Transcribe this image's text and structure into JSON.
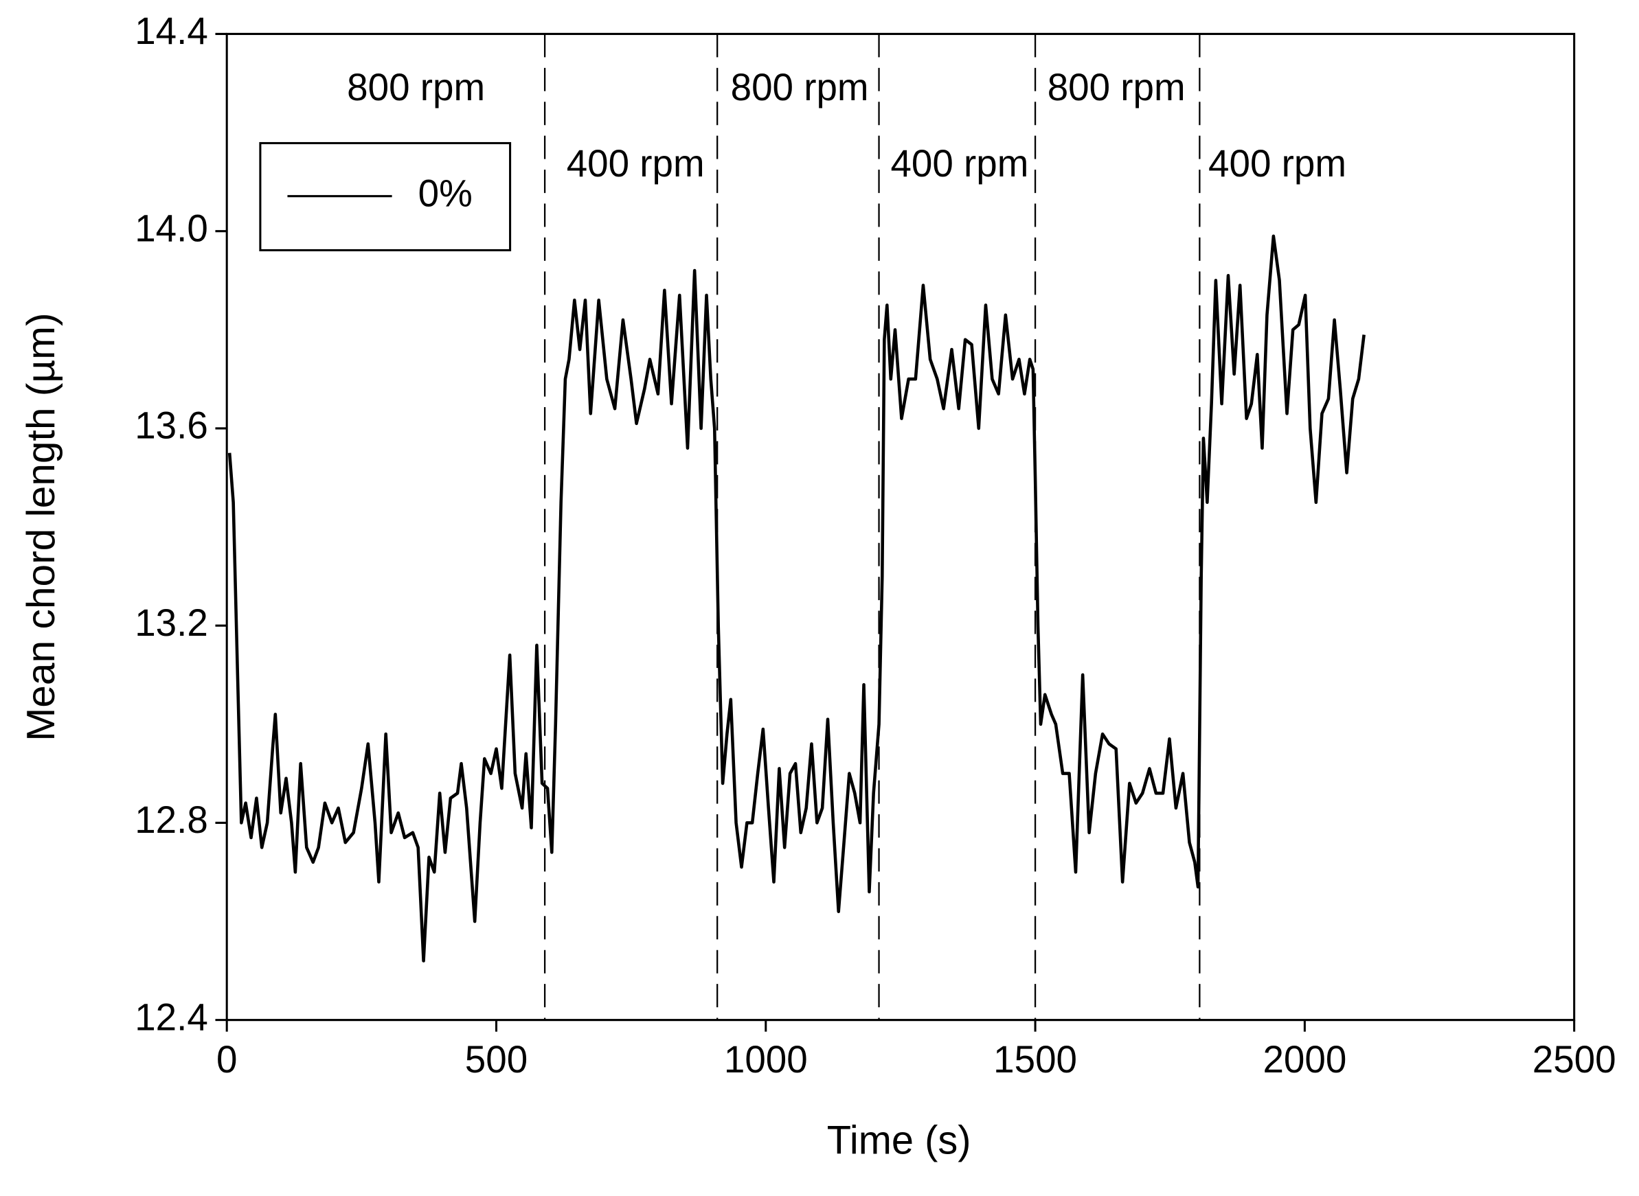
{
  "chart_data": {
    "type": "line",
    "xlabel": "Time (s)",
    "ylabel": "Mean chord length (µm)",
    "xlim": [
      0,
      2500
    ],
    "xticks": [
      0,
      500,
      1000,
      1500,
      2000,
      2500
    ],
    "ylim": [
      12.4,
      14.4
    ],
    "yticks": [
      12.4,
      12.8,
      13.2,
      13.6,
      {
        "value": 14,
        "label": "14.0"
      },
      14.4
    ],
    "legend": "upper left",
    "vlines": [
      590,
      910,
      1210,
      1500,
      1805
    ],
    "annotations": [
      "800 rpm",
      "400 rpm",
      "800 rpm",
      "400 rpm",
      "800 rpm",
      "400 rpm"
    ],
    "x": [
      5,
      12,
      20,
      27,
      35,
      45,
      55,
      65,
      75,
      85,
      90,
      100,
      110,
      120,
      127,
      137,
      148,
      160,
      170,
      182,
      195,
      207,
      220,
      235,
      250,
      262,
      275,
      282,
      295,
      305,
      318,
      330,
      345,
      355,
      365,
      375,
      385,
      395,
      405,
      415,
      428,
      435,
      445,
      460,
      470,
      478,
      490,
      500,
      510,
      525,
      535,
      548,
      555,
      565,
      575,
      585,
      595,
      603,
      610,
      620,
      628,
      635,
      645,
      655,
      665,
      675,
      690,
      705,
      720,
      735,
      750,
      760,
      775,
      785,
      800,
      812,
      825,
      840,
      855,
      868,
      880,
      890,
      898,
      905,
      912,
      920,
      928,
      935,
      945,
      955,
      965,
      975,
      985,
      995,
      1005,
      1015,
      1025,
      1035,
      1045,
      1055,
      1065,
      1075,
      1085,
      1095,
      1105,
      1115,
      1125,
      1135,
      1145,
      1155,
      1165,
      1175,
      1182,
      1192,
      1200,
      1210,
      1216,
      1220,
      1225,
      1232,
      1240,
      1252,
      1265,
      1278,
      1292,
      1305,
      1318,
      1330,
      1345,
      1358,
      1370,
      1382,
      1395,
      1408,
      1420,
      1432,
      1445,
      1458,
      1470,
      1480,
      1490,
      1496,
      1500,
      1505,
      1510,
      1518,
      1530,
      1538,
      1551,
      1563,
      1575,
      1588,
      1600,
      1612,
      1625,
      1637,
      1650,
      1662,
      1675,
      1687,
      1699,
      1712,
      1724,
      1737,
      1749,
      1761,
      1774,
      1786,
      1796,
      1802,
      1808,
      1812,
      1819,
      1827,
      1835,
      1846,
      1858,
      1869,
      1880,
      1892,
      1901,
      1912,
      1921,
      1930,
      1942,
      1953,
      1967,
      1978,
      1989,
      2001,
      2010,
      2021,
      2032,
      2044,
      2055,
      2066,
      2078,
      2089,
      2100,
      2110
    ],
    "series": [
      {
        "name": "0%",
        "color": "#000000",
        "values": [
          13.55,
          13.45,
          13.1,
          12.8,
          12.84,
          12.77,
          12.85,
          12.75,
          12.8,
          12.95,
          13.02,
          12.82,
          12.89,
          12.8,
          12.7,
          12.92,
          12.75,
          12.72,
          12.75,
          12.84,
          12.8,
          12.83,
          12.76,
          12.78,
          12.87,
          12.96,
          12.8,
          12.68,
          12.98,
          12.78,
          12.82,
          12.77,
          12.78,
          12.75,
          12.52,
          12.73,
          12.7,
          12.86,
          12.74,
          12.85,
          12.86,
          12.92,
          12.83,
          12.6,
          12.8,
          12.93,
          12.9,
          12.95,
          12.87,
          13.14,
          12.9,
          12.83,
          12.94,
          12.79,
          13.16,
          12.88,
          12.87,
          12.74,
          13.0,
          13.45,
          13.7,
          13.74,
          13.86,
          13.76,
          13.86,
          13.63,
          13.86,
          13.7,
          13.64,
          13.82,
          13.7,
          13.61,
          13.68,
          13.74,
          13.67,
          13.88,
          13.65,
          13.87,
          13.56,
          13.92,
          13.6,
          13.87,
          13.7,
          13.6,
          13.2,
          12.88,
          12.98,
          13.05,
          12.8,
          12.71,
          12.8,
          12.8,
          12.9,
          12.99,
          12.83,
          12.68,
          12.91,
          12.75,
          12.9,
          12.92,
          12.78,
          12.83,
          12.96,
          12.8,
          12.83,
          13.01,
          12.8,
          12.62,
          12.76,
          12.9,
          12.86,
          12.8,
          13.08,
          12.66,
          12.86,
          13.0,
          13.3,
          13.78,
          13.85,
          13.7,
          13.8,
          13.62,
          13.7,
          13.7,
          13.89,
          13.74,
          13.7,
          13.64,
          13.76,
          13.64,
          13.78,
          13.77,
          13.6,
          13.85,
          13.7,
          13.67,
          13.83,
          13.7,
          13.74,
          13.67,
          13.74,
          13.72,
          13.5,
          13.2,
          13.0,
          13.06,
          13.02,
          13.0,
          12.9,
          12.9,
          12.7,
          13.1,
          12.78,
          12.9,
          12.98,
          12.96,
          12.95,
          12.68,
          12.88,
          12.84,
          12.86,
          12.91,
          12.86,
          12.86,
          12.97,
          12.83,
          12.9,
          12.76,
          12.72,
          12.67,
          13.3,
          13.58,
          13.45,
          13.65,
          13.9,
          13.65,
          13.91,
          13.71,
          13.89,
          13.62,
          13.65,
          13.75,
          13.56,
          13.83,
          13.99,
          13.9,
          13.63,
          13.8,
          13.81,
          13.87,
          13.6,
          13.45,
          13.63,
          13.66,
          13.82,
          13.68,
          13.51,
          13.66,
          13.7,
          13.79
        ]
      }
    ]
  }
}
